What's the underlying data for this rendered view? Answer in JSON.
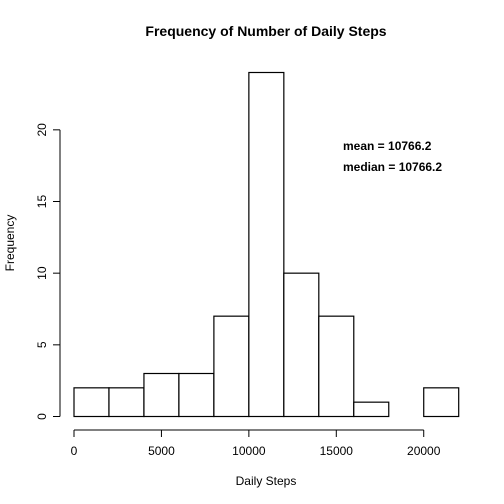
{
  "chart_data": {
    "type": "bar",
    "title": "Frequency of Number of Daily Steps",
    "xlabel": "Daily Steps",
    "ylabel": "Frequency",
    "bins": [
      {
        "start": 0,
        "end": 2000,
        "value": 2
      },
      {
        "start": 2000,
        "end": 4000,
        "value": 2
      },
      {
        "start": 4000,
        "end": 6000,
        "value": 3
      },
      {
        "start": 6000,
        "end": 8000,
        "value": 3
      },
      {
        "start": 8000,
        "end": 10000,
        "value": 7
      },
      {
        "start": 10000,
        "end": 12000,
        "value": 24
      },
      {
        "start": 12000,
        "end": 14000,
        "value": 10
      },
      {
        "start": 14000,
        "end": 16000,
        "value": 7
      },
      {
        "start": 16000,
        "end": 18000,
        "value": 1
      },
      {
        "start": 18000,
        "end": 20000,
        "value": 0
      },
      {
        "start": 20000,
        "end": 22000,
        "value": 2
      }
    ],
    "xlim": [
      0,
      22000
    ],
    "ylim": [
      0,
      24
    ],
    "xticks": [
      0,
      5000,
      10000,
      15000,
      20000
    ],
    "yticks": [
      0,
      5,
      10,
      15,
      20
    ],
    "annotations": [
      {
        "text": "mean = 10766.2"
      },
      {
        "text": "median = 10766.2"
      }
    ],
    "grid": false,
    "legend": "none"
  }
}
